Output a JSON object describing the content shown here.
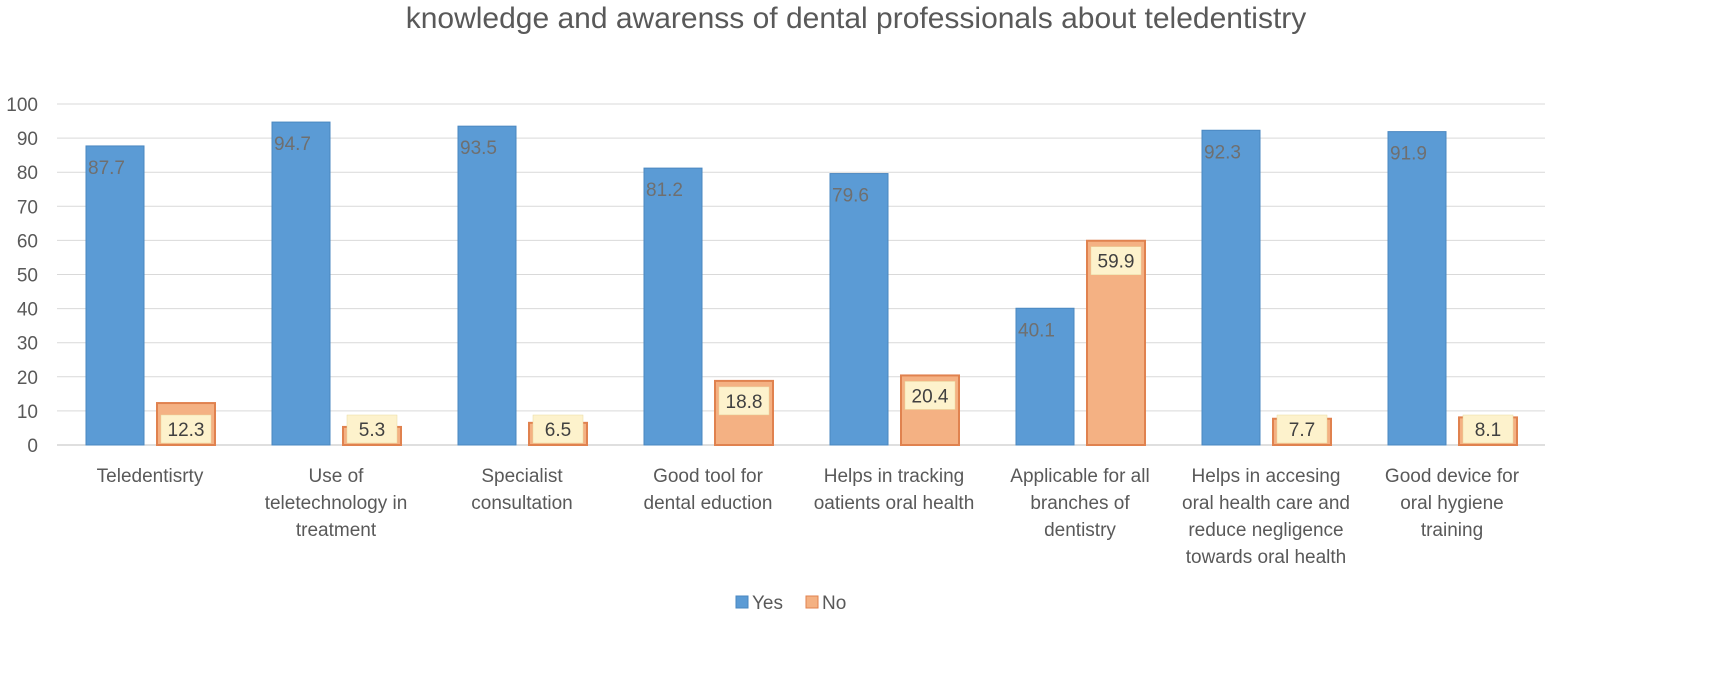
{
  "chart_data": {
    "type": "bar",
    "title": "knowledge and awarenss of dental professionals about teledentistry",
    "categories": [
      [
        "Teledentisrty"
      ],
      [
        "Use of",
        "teletechnology in",
        "treatment"
      ],
      [
        "Specialist",
        "consultation"
      ],
      [
        "Good tool for",
        "dental eduction"
      ],
      [
        "Helps in tracking",
        "oatients oral health"
      ],
      [
        "Applicable for all",
        "branches of",
        "dentistry"
      ],
      [
        "Helps in accesing",
        "oral health care and",
        "reduce negligence",
        "towards oral health"
      ],
      [
        "Good device for",
        "oral hygiene",
        "training"
      ]
    ],
    "series": [
      {
        "name": "Yes",
        "color": "#5b9bd5",
        "values": [
          87.7,
          94.7,
          93.5,
          81.2,
          79.6,
          40.1,
          92.3,
          91.9
        ]
      },
      {
        "name": "No",
        "color": "#f4b183",
        "values": [
          12.3,
          5.3,
          6.5,
          18.8,
          20.4,
          59.9,
          7.7,
          8.1
        ]
      }
    ],
    "ylim": [
      0,
      100
    ],
    "yticks": [
      0,
      10,
      20,
      30,
      40,
      50,
      60,
      70,
      80,
      90,
      100
    ],
    "grid": true,
    "legend": "bottom"
  }
}
